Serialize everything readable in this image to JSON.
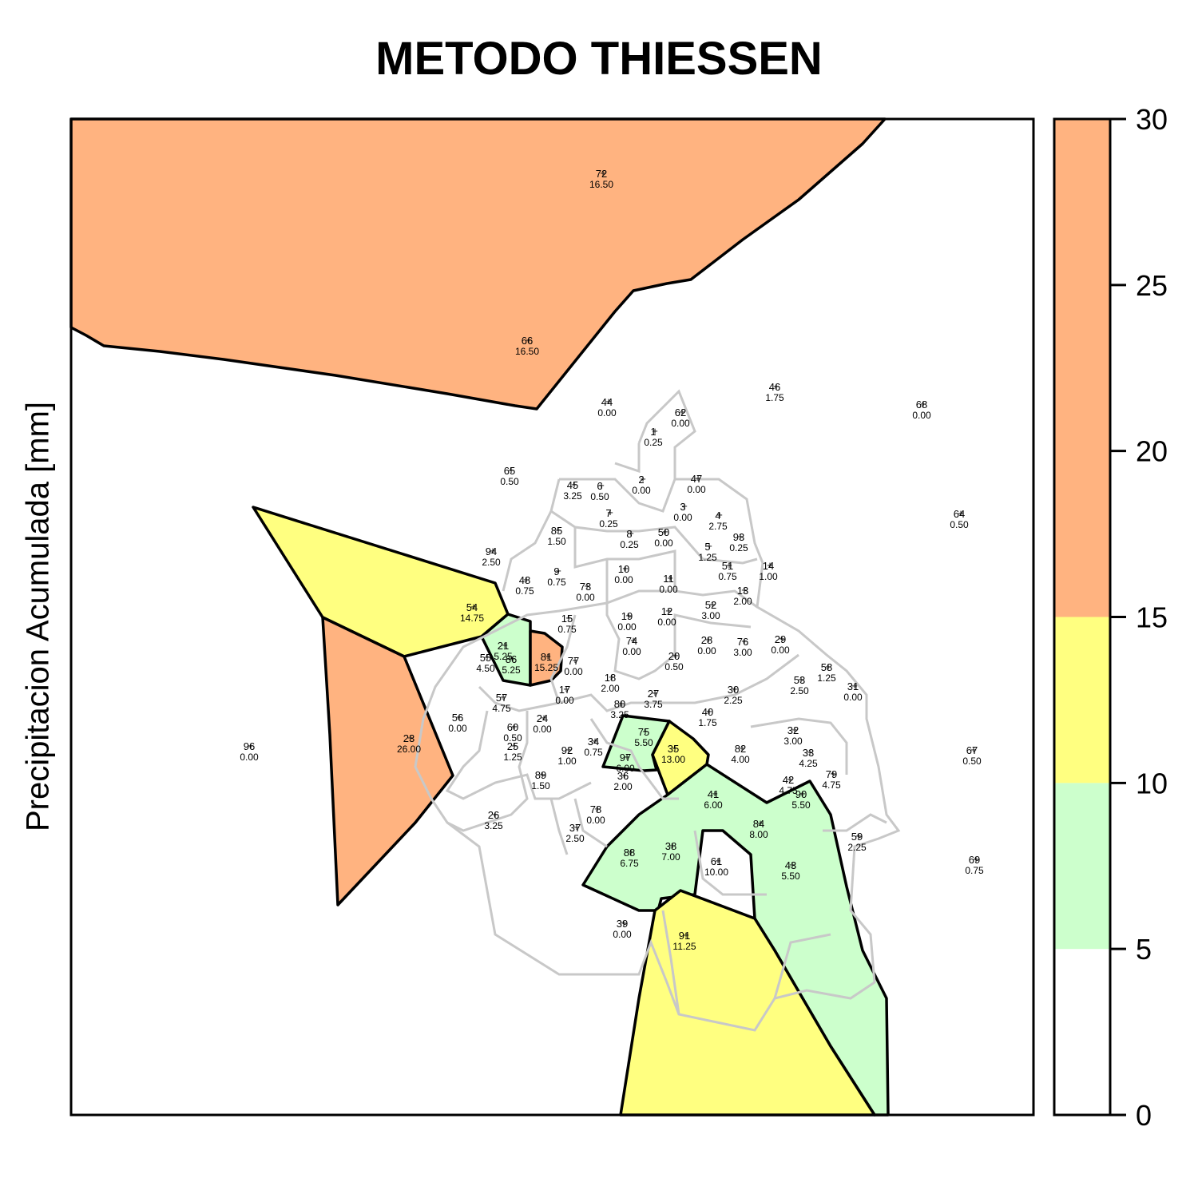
{
  "title": "METODO THIESSEN",
  "y_axis_label": "Precipitacion Acumulada [mm]",
  "colors": {
    "class_0_5": "#ffffff",
    "class_5_10": "#ccffcc",
    "class_10_15": "#ffff80",
    "class_15_30": "#ffb380",
    "boundary_gray": "#c8c8c8",
    "polygon_outline": "#000000"
  },
  "legend": {
    "breaks": [
      0,
      5,
      10,
      15,
      30
    ],
    "tick_labels": [
      "0",
      "5",
      "10",
      "15",
      "20",
      "25",
      "30"
    ],
    "range": [
      0,
      30
    ]
  },
  "stations": [
    {
      "id": "72",
      "value": "16.50"
    },
    {
      "id": "66",
      "value": "16.50"
    },
    {
      "id": "44",
      "value": "0.00"
    },
    {
      "id": "46",
      "value": "1.75"
    },
    {
      "id": "62",
      "value": "0.00"
    },
    {
      "id": "68",
      "value": "0.00"
    },
    {
      "id": "1",
      "value": "0.25"
    },
    {
      "id": "65",
      "value": "0.50"
    },
    {
      "id": "45",
      "value": "3.25"
    },
    {
      "id": "6",
      "value": "0.50"
    },
    {
      "id": "2",
      "value": "0.00"
    },
    {
      "id": "47",
      "value": "0.00"
    },
    {
      "id": "64",
      "value": "0.50"
    },
    {
      "id": "3",
      "value": "0.00"
    },
    {
      "id": "4",
      "value": "2.75"
    },
    {
      "id": "7",
      "value": "0.25"
    },
    {
      "id": "85",
      "value": "1.50"
    },
    {
      "id": "8",
      "value": "0.25"
    },
    {
      "id": "50",
      "value": "0.00"
    },
    {
      "id": "93",
      "value": "0.25"
    },
    {
      "id": "5",
      "value": "1.25"
    },
    {
      "id": "94",
      "value": "2.50"
    },
    {
      "id": "51",
      "value": "0.75"
    },
    {
      "id": "14",
      "value": "1.00"
    },
    {
      "id": "9",
      "value": "0.75"
    },
    {
      "id": "10",
      "value": "0.00"
    },
    {
      "id": "48",
      "value": "0.75"
    },
    {
      "id": "73",
      "value": "0.00"
    },
    {
      "id": "11",
      "value": "0.00"
    },
    {
      "id": "13",
      "value": "2.00"
    },
    {
      "id": "54",
      "value": "14.75"
    },
    {
      "id": "52",
      "value": "3.00"
    },
    {
      "id": "19",
      "value": "0.00"
    },
    {
      "id": "12",
      "value": "0.00"
    },
    {
      "id": "15",
      "value": "0.75"
    },
    {
      "id": "28",
      "value": "0.00"
    },
    {
      "id": "76",
      "value": "3.00"
    },
    {
      "id": "29",
      "value": "0.00"
    },
    {
      "id": "74",
      "value": "0.00"
    },
    {
      "id": "21",
      "value": "5.25"
    },
    {
      "id": "55",
      "value": "4.50"
    },
    {
      "id": "86",
      "value": "5.25"
    },
    {
      "id": "81",
      "value": "15.25"
    },
    {
      "id": "77",
      "value": "0.00"
    },
    {
      "id": "20",
      "value": "0.50"
    },
    {
      "id": "58",
      "value": "1.25"
    },
    {
      "id": "18",
      "value": "2.00"
    },
    {
      "id": "53",
      "value": "2.50"
    },
    {
      "id": "31",
      "value": "0.00"
    },
    {
      "id": "17",
      "value": "0.00"
    },
    {
      "id": "30",
      "value": "2.25"
    },
    {
      "id": "57",
      "value": "4.75"
    },
    {
      "id": "27",
      "value": "3.75"
    },
    {
      "id": "80",
      "value": "3.25"
    },
    {
      "id": "40",
      "value": "1.75"
    },
    {
      "id": "56",
      "value": "0.00"
    },
    {
      "id": "24",
      "value": "0.00"
    },
    {
      "id": "60",
      "value": "0.50"
    },
    {
      "id": "75",
      "value": "5.50"
    },
    {
      "id": "32",
      "value": "3.00"
    },
    {
      "id": "23",
      "value": "26.00"
    },
    {
      "id": "34",
      "value": "0.75"
    },
    {
      "id": "25",
      "value": "1.25"
    },
    {
      "id": "35",
      "value": "13.00"
    },
    {
      "id": "82",
      "value": "4.00"
    },
    {
      "id": "96",
      "value": "0.00"
    },
    {
      "id": "92",
      "value": "1.00"
    },
    {
      "id": "33",
      "value": "4.25"
    },
    {
      "id": "67",
      "value": "0.50"
    },
    {
      "id": "97",
      "value": "6.00"
    },
    {
      "id": "36",
      "value": "2.00"
    },
    {
      "id": "89",
      "value": "1.50"
    },
    {
      "id": "79",
      "value": "4.75"
    },
    {
      "id": "42",
      "value": "4.75"
    },
    {
      "id": "41",
      "value": "6.00"
    },
    {
      "id": "90",
      "value": "5.50"
    },
    {
      "id": "78",
      "value": "0.00"
    },
    {
      "id": "26",
      "value": "3.25"
    },
    {
      "id": "84",
      "value": "8.00"
    },
    {
      "id": "37",
      "value": "2.50"
    },
    {
      "id": "59",
      "value": "2.25"
    },
    {
      "id": "88",
      "value": "6.75"
    },
    {
      "id": "38",
      "value": "7.00"
    },
    {
      "id": "61",
      "value": "10.00"
    },
    {
      "id": "43",
      "value": "5.50"
    },
    {
      "id": "69",
      "value": "0.75"
    },
    {
      "id": "39",
      "value": "0.00"
    },
    {
      "id": "91",
      "value": "11.25"
    }
  ]
}
